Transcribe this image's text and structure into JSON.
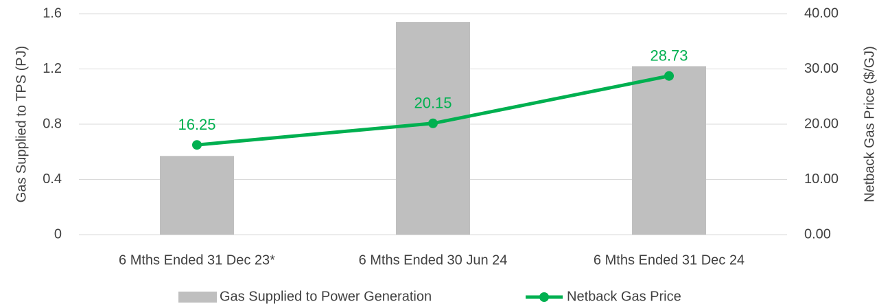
{
  "chart_data": {
    "type": "bar",
    "categories": [
      "6 Mths Ended 31 Dec 23*",
      "6 Mths Ended 30 Jun 24",
      "6 Mths Ended 31 Dec 24"
    ],
    "series": [
      {
        "name": "Gas Supplied to Power Generation",
        "color": "#bfbfbf",
        "type": "bar",
        "values": [
          0.57,
          1.54,
          1.22
        ]
      },
      {
        "name": "Netback Gas Price",
        "color": "#00b050",
        "type": "line",
        "axis": "y2",
        "values": [
          16.25,
          20.15,
          28.73
        ]
      }
    ],
    "ylabel": "Gas Supplied to TPS (PJ)",
    "y2label": "Netback Gas Price ($/GJ)",
    "ylim": [
      0,
      1.6
    ],
    "yticks": [
      0,
      0.4,
      0.8,
      1.2,
      1.6
    ],
    "y2lim": [
      0,
      40
    ],
    "y2ticks": [
      {
        "value": 0,
        "label": "0.00"
      },
      {
        "value": 10,
        "label": "10.00"
      },
      {
        "value": 20,
        "label": "20.00"
      },
      {
        "value": 30,
        "label": "30.00"
      },
      {
        "value": 40,
        "label": "40.00"
      }
    ],
    "grid": true,
    "legend": "bottom"
  }
}
